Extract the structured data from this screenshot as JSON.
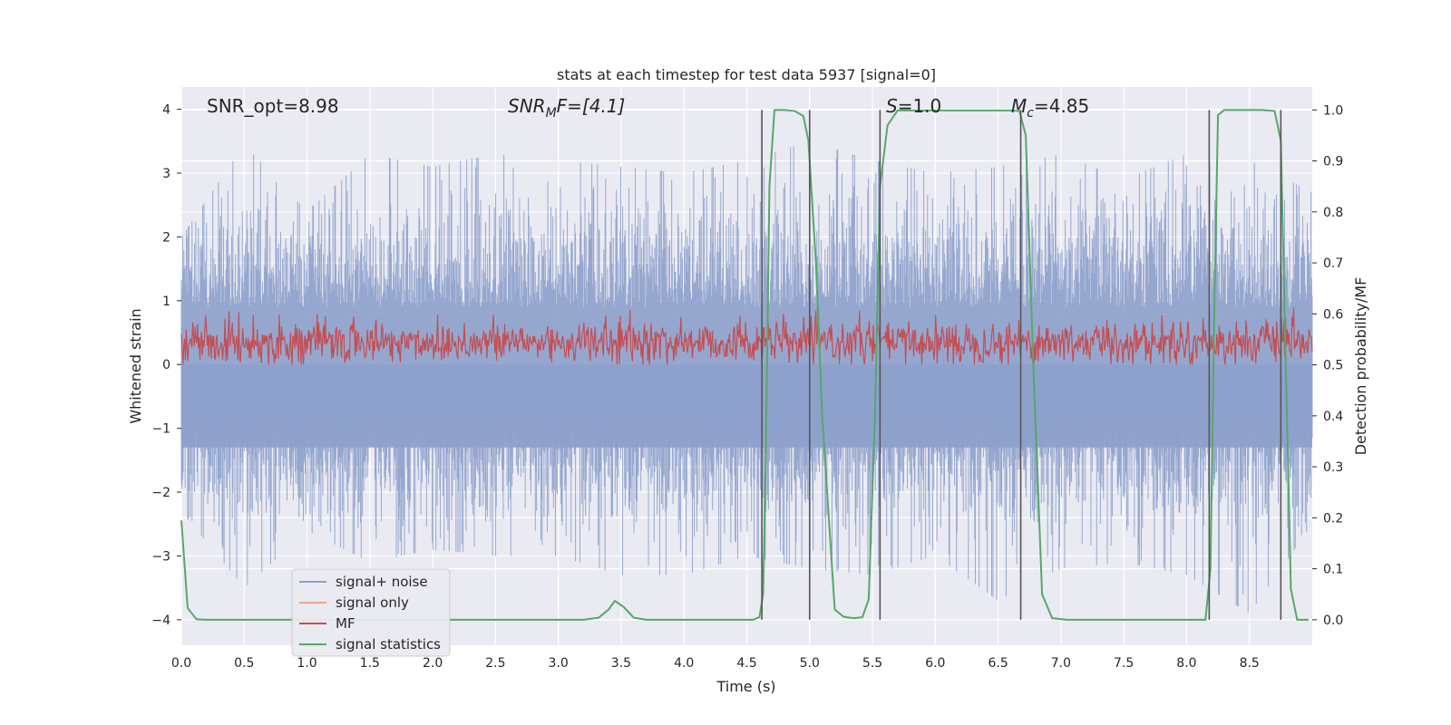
{
  "chart_data": {
    "type": "line",
    "title": "stats at each timestep for test data 5937 [signal=0]",
    "xlabel": "Time (s)",
    "ylabel": "Whitened strain",
    "ylabel_right": "Detection probability/MF",
    "xlim": [
      0.0,
      9.0
    ],
    "ylim": [
      -4.4,
      4.35
    ],
    "ylim_right": [
      -0.05,
      1.045
    ],
    "x_ticks": [
      "0.0",
      "0.5",
      "1.0",
      "1.5",
      "2.0",
      "2.5",
      "3.0",
      "3.5",
      "4.0",
      "4.5",
      "5.0",
      "5.5",
      "6.0",
      "6.5",
      "7.0",
      "7.5",
      "8.0",
      "8.5"
    ],
    "y_ticks": [
      "4",
      "3",
      "2",
      "1",
      "0",
      "−1",
      "−2",
      "−3",
      "−4"
    ],
    "y_right_ticks": [
      "1.0",
      "0.9",
      "0.8",
      "0.7",
      "0.6",
      "0.5",
      "0.4",
      "0.3",
      "0.2",
      "0.1",
      "0.0"
    ],
    "grid": true,
    "legend_position": "lower-left",
    "legend": [
      {
        "name": "signal+ noise",
        "color": "#8da0cb"
      },
      {
        "name": "signal only",
        "color": "#f4a582"
      },
      {
        "name": "MF",
        "color": "#c44e52"
      },
      {
        "name": "signal statistics",
        "color": "#55a868"
      }
    ],
    "annotations": {
      "snr_opt": "SNR_opt=8.98",
      "snr_mf_base": "SNR",
      "snr_mf_sub": "M",
      "snr_mf_rest": "F=[4.1]",
      "s_var": "S",
      "s_rest": "=1.0",
      "mc_var": "M",
      "mc_sub": "c",
      "mc_rest": "=4.85"
    },
    "noise_envelope": {
      "x": [
        0.0,
        0.5,
        1.0,
        1.5,
        2.0,
        2.5,
        3.0,
        3.5,
        4.0,
        4.5,
        5.0,
        5.5,
        6.0,
        6.5,
        7.0,
        7.5,
        8.0,
        8.5,
        9.0
      ],
      "upper_peaks": [
        2.0,
        3.45,
        2.4,
        3.3,
        3.1,
        3.3,
        3.2,
        3.1,
        3.0,
        3.2,
        3.5,
        3.2,
        3.0,
        3.1,
        3.3,
        2.9,
        3.3,
        3.2,
        2.7
      ],
      "lower_peaks": [
        -2.3,
        -3.5,
        -2.6,
        -3.1,
        -2.9,
        -3.0,
        -3.0,
        -3.3,
        -3.3,
        -3.0,
        -3.2,
        -3.3,
        -3.0,
        -3.7,
        -3.2,
        -3.1,
        -3.3,
        -3.9,
        -2.5
      ]
    },
    "mf_band": {
      "min": 0.0,
      "max": 0.9,
      "typical_center": 0.35
    },
    "signal_statistics": {
      "x": [
        0.0,
        0.05,
        0.12,
        0.2,
        3.2,
        3.32,
        3.4,
        3.45,
        3.52,
        3.6,
        3.7,
        4.55,
        4.6,
        4.63,
        4.65,
        4.68,
        4.72,
        4.8,
        4.88,
        4.95,
        4.99,
        5.05,
        5.1,
        5.2,
        5.27,
        5.35,
        5.42,
        5.47,
        5.52,
        5.56,
        5.62,
        5.7,
        6.5,
        6.6,
        6.67,
        6.72,
        6.78,
        6.85,
        6.93,
        7.05,
        8.15,
        8.19,
        8.22,
        8.25,
        8.3,
        8.6,
        8.7,
        8.75,
        8.78,
        8.83,
        8.88,
        8.97
      ],
      "y": [
        0.195,
        0.023,
        0.001,
        0.0,
        0.0,
        0.004,
        0.02,
        0.037,
        0.025,
        0.004,
        0.0,
        0.0,
        0.005,
        0.05,
        0.3,
        0.85,
        1.0,
        1.0,
        0.998,
        0.988,
        0.94,
        0.7,
        0.4,
        0.02,
        0.006,
        0.003,
        0.005,
        0.04,
        0.4,
        0.85,
        0.97,
        0.999,
        0.999,
        0.999,
        0.998,
        0.95,
        0.5,
        0.05,
        0.003,
        0.0,
        0.0,
        0.1,
        0.6,
        0.99,
        1.0,
        1.0,
        0.998,
        0.94,
        0.6,
        0.06,
        0.0,
        0.0
      ]
    },
    "vertical_markers": [
      4.62,
      5.0,
      5.56,
      6.68,
      8.18,
      8.75
    ],
    "colors": {
      "plot_bg": "#eaeaf2",
      "grid": "#ffffff",
      "noise": "#8da0cb",
      "mf": "#c44e52",
      "stats": "#55a868",
      "markers": "#555555"
    }
  }
}
